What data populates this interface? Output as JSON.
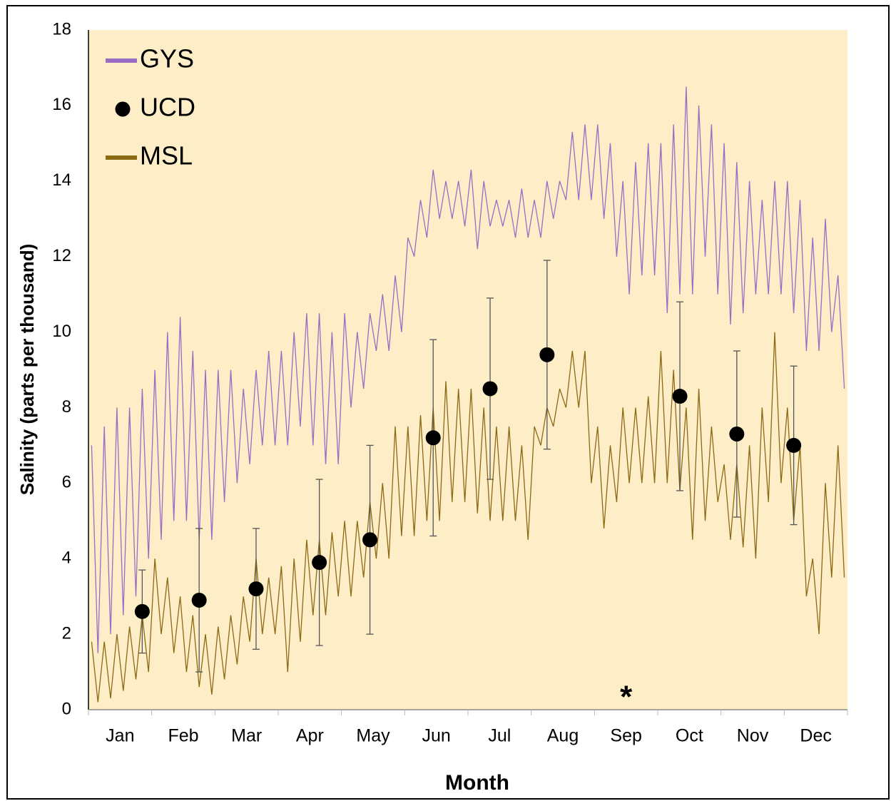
{
  "chart_data": {
    "type": "line",
    "x_label": "Month",
    "y_label": "Salinity (parts per thousand)",
    "annotation": "*",
    "categories": [
      null,
      null,
      null,
      null,
      "Jan",
      null,
      null,
      null,
      null,
      null,
      null,
      null,
      null,
      null,
      "Feb",
      null,
      null,
      null,
      null,
      null,
      null,
      null,
      null,
      null,
      "Mar",
      null,
      null,
      null,
      null,
      null,
      null,
      null,
      null,
      null,
      "Apr",
      null,
      null,
      null,
      null,
      null,
      null,
      null,
      null,
      null,
      "May",
      null,
      null,
      null,
      null,
      null,
      null,
      null,
      null,
      null,
      "Jun",
      null,
      null,
      null,
      null,
      null,
      null,
      null,
      null,
      null,
      "Jul",
      null,
      null,
      null,
      null,
      null,
      null,
      null,
      null,
      null,
      "Aug",
      null,
      null,
      null,
      null,
      null,
      null,
      null,
      null,
      null,
      "Sep",
      null,
      null,
      null,
      null,
      null,
      null,
      null,
      null,
      null,
      "Oct",
      null,
      null,
      null,
      null,
      null,
      null,
      null,
      null,
      null,
      "Nov",
      null,
      null,
      null,
      null,
      null,
      null,
      null,
      null,
      null,
      "Dec",
      null,
      null,
      null,
      null,
      null
    ],
    "series": [
      {
        "name": "GYS",
        "color": "#9b6cc4",
        "style": "line",
        "values": [
          7,
          1.5,
          7.5,
          2,
          8,
          2.5,
          8,
          3,
          8.5,
          4,
          9,
          4.5,
          10,
          5,
          10.4,
          5,
          9.5,
          4.5,
          9,
          4.5,
          9,
          5.5,
          9,
          6,
          8.5,
          6.5,
          9,
          7,
          9.5,
          7,
          9.5,
          7,
          10,
          7.5,
          10.5,
          7,
          10.5,
          6.5,
          10,
          6.5,
          10.5,
          8,
          10,
          8.5,
          10.5,
          9.5,
          11,
          9.5,
          11.5,
          10,
          12.5,
          12,
          13.5,
          12.5,
          14.3,
          13,
          14,
          13,
          14,
          12.8,
          14.3,
          12.2,
          14,
          12.8,
          13.5,
          12.8,
          13.5,
          12.5,
          13.8,
          12.5,
          13.5,
          12.5,
          14,
          13,
          14,
          13.5,
          15.3,
          13.5,
          15.5,
          13.5,
          15.5,
          13,
          15,
          12,
          14,
          11,
          14.5,
          11.5,
          15,
          11.5,
          15,
          10.5,
          15.5,
          11,
          16.5,
          11,
          16,
          12,
          15.5,
          11,
          15,
          10.2,
          14.5,
          10.5,
          14,
          11,
          13.5,
          11,
          14,
          11,
          14,
          10.5,
          13.5,
          9.5,
          12.5,
          9.5,
          13,
          10,
          11.5,
          8.5
        ]
      },
      {
        "name": "UCD",
        "color": "#000000",
        "style": "points",
        "values": [
          null,
          null,
          null,
          null,
          null,
          null,
          null,
          null,
          2.6,
          null,
          null,
          null,
          null,
          null,
          null,
          null,
          null,
          2.9,
          null,
          null,
          null,
          null,
          null,
          null,
          null,
          null,
          3.2,
          null,
          null,
          null,
          null,
          null,
          null,
          null,
          null,
          null,
          3.9,
          null,
          null,
          null,
          null,
          null,
          null,
          null,
          4.5,
          null,
          null,
          null,
          null,
          null,
          null,
          null,
          null,
          null,
          7.2,
          null,
          null,
          null,
          null,
          null,
          null,
          null,
          null,
          8.5,
          null,
          null,
          null,
          null,
          null,
          null,
          null,
          null,
          9.4,
          null,
          null,
          null,
          null,
          null,
          null,
          null,
          null,
          null,
          null,
          null,
          null,
          null,
          null,
          null,
          null,
          null,
          null,
          null,
          null,
          8.3,
          null,
          null,
          null,
          null,
          null,
          null,
          null,
          null,
          7.3,
          null,
          null,
          null,
          null,
          null,
          null,
          null,
          null,
          7.0,
          null,
          null,
          null,
          null,
          null,
          null,
          null,
          null
        ],
        "errors": [
          null,
          null,
          null,
          null,
          null,
          null,
          null,
          null,
          1.1,
          null,
          null,
          null,
          null,
          null,
          null,
          null,
          null,
          1.9,
          null,
          null,
          null,
          null,
          null,
          null,
          null,
          null,
          1.6,
          null,
          null,
          null,
          null,
          null,
          null,
          null,
          null,
          null,
          2.2,
          null,
          null,
          null,
          null,
          null,
          null,
          null,
          2.5,
          null,
          null,
          null,
          null,
          null,
          null,
          null,
          null,
          null,
          2.6,
          null,
          null,
          null,
          null,
          null,
          null,
          null,
          null,
          2.4,
          null,
          null,
          null,
          null,
          null,
          null,
          null,
          null,
          2.5,
          null,
          null,
          null,
          null,
          null,
          null,
          null,
          null,
          null,
          null,
          null,
          null,
          null,
          null,
          null,
          null,
          null,
          null,
          null,
          null,
          2.5,
          null,
          null,
          null,
          null,
          null,
          null,
          null,
          null,
          2.2,
          null,
          null,
          null,
          null,
          null,
          null,
          null,
          null,
          2.1,
          null,
          null,
          null,
          null,
          null,
          null,
          null,
          null
        ]
      },
      {
        "name": "MSL",
        "color": "#8c6a14",
        "style": "line",
        "values": [
          1.8,
          0.2,
          1.8,
          0.3,
          2,
          0.5,
          2.2,
          0.8,
          2.5,
          1,
          4,
          2,
          3.5,
          1.5,
          3,
          1,
          2.5,
          0.6,
          2,
          0.4,
          2.2,
          0.8,
          2.5,
          1.2,
          3,
          1.8,
          4,
          2,
          3.5,
          2,
          3.8,
          1,
          4,
          1.8,
          4.5,
          2.5,
          4.5,
          2.5,
          4.7,
          3,
          5,
          3,
          5,
          3.5,
          5.5,
          4,
          6,
          4,
          7.5,
          4.6,
          7.5,
          4.6,
          7.8,
          5,
          8,
          5,
          8.7,
          5.5,
          8.5,
          5.5,
          8.5,
          5.2,
          8,
          5,
          7.5,
          5,
          7.5,
          5,
          7,
          4.5,
          7.5,
          7,
          8,
          7.5,
          8.5,
          8,
          9.5,
          8,
          9.5,
          6,
          7.5,
          4.8,
          7,
          5.5,
          8,
          6,
          8,
          6,
          8.3,
          6,
          9.5,
          6,
          9,
          5.8,
          8,
          4.5,
          8.5,
          5,
          7.5,
          5.5,
          6.5,
          4.5,
          6.5,
          4.3,
          7,
          4,
          8,
          5.5,
          10,
          6,
          8,
          5,
          7,
          3,
          4,
          2,
          6,
          3.5,
          7,
          3.5
        ]
      }
    ],
    "ylim": [
      0,
      18
    ],
    "yticks": [
      0,
      2,
      4,
      6,
      8,
      10,
      12,
      14,
      16,
      18
    ],
    "grid": false,
    "legend": "upper-left",
    "background": "#fdeec8"
  }
}
